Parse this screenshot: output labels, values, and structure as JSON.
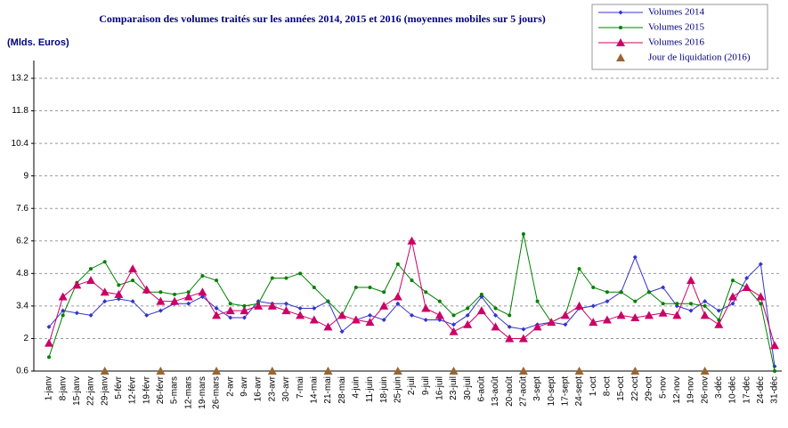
{
  "chart_data": {
    "type": "line",
    "title": "Comparaison des volumes traités sur les années 2014, 2015 et 2016 (moyennes mobiles sur 5 jours)",
    "y_label": "(Mlds. Euros)",
    "categories": [
      "1-janv",
      "8-janv",
      "15-janv",
      "22-janv",
      "29-janv",
      "5-févr",
      "12-févr",
      "19-févr",
      "26-févr",
      "5-mars",
      "12-mars",
      "19-mars",
      "26-mars",
      "2-avr",
      "9-avr",
      "16-avr",
      "23-avr",
      "30-avr",
      "7-mai",
      "14-mai",
      "21-mai",
      "28-mai",
      "4-juin",
      "11-juin",
      "18-juin",
      "25-juin",
      "2-juil",
      "9-juil",
      "16-juil",
      "23-juil",
      "30-juil",
      "6-août",
      "13-août",
      "20-août",
      "27-août",
      "3-sept",
      "10-sept",
      "17-sept",
      "24-sept",
      "1-oct",
      "8-oct",
      "15-oct",
      "22-oct",
      "29-oct",
      "5-nov",
      "12-nov",
      "19-nov",
      "26-nov",
      "3-déc",
      "10-déc",
      "17-déc",
      "24-déc",
      "31-déc"
    ],
    "series": [
      {
        "name": "Volumes 2014",
        "color": "#3333cc",
        "marker": "diamond",
        "values": [
          2.5,
          3.2,
          3.1,
          3.0,
          3.6,
          3.7,
          3.6,
          3.0,
          3.2,
          3.5,
          3.5,
          3.8,
          3.3,
          2.9,
          2.9,
          3.6,
          3.5,
          3.5,
          3.3,
          3.3,
          3.6,
          2.3,
          2.8,
          3.0,
          2.8,
          3.5,
          3.0,
          2.8,
          2.8,
          2.6,
          3.0,
          3.8,
          3.0,
          2.5,
          2.4,
          2.6,
          2.7,
          2.6,
          3.3,
          3.4,
          3.6,
          4.0,
          5.5,
          4.0,
          4.2,
          3.4,
          3.2,
          3.6,
          3.2,
          3.5,
          4.6,
          5.2,
          0.8
        ]
      },
      {
        "name": "Volumes 2015",
        "color": "#008000",
        "marker": "dot",
        "values": [
          1.2,
          3.0,
          4.4,
          5.0,
          5.3,
          4.3,
          4.5,
          4.0,
          4.0,
          3.9,
          4.0,
          4.7,
          4.5,
          3.5,
          3.4,
          3.5,
          4.6,
          4.6,
          4.8,
          4.2,
          3.6,
          3.0,
          4.2,
          4.2,
          4.0,
          5.2,
          4.5,
          4.0,
          3.6,
          3.0,
          3.3,
          3.9,
          3.3,
          3.0,
          6.5,
          3.6,
          2.7,
          3.0,
          5.0,
          4.2,
          4.0,
          4.0,
          3.6,
          4.0,
          3.5,
          3.5,
          3.5,
          3.4,
          2.8,
          4.5,
          4.2,
          3.5,
          0.6
        ]
      },
      {
        "name": "Volumes 2016",
        "color": "#cc0066",
        "marker": "triangle",
        "values": [
          1.8,
          3.8,
          4.3,
          4.5,
          4.0,
          3.9,
          5.0,
          4.1,
          3.6,
          3.6,
          3.8,
          4.0,
          3.0,
          3.2,
          3.2,
          3.4,
          3.4,
          3.2,
          3.0,
          2.8,
          2.5,
          3.0,
          2.8,
          2.7,
          3.4,
          3.8,
          6.2,
          3.3,
          3.0,
          2.3,
          2.6,
          3.2,
          2.5,
          2.0,
          2.0,
          2.5,
          2.7,
          3.0,
          3.4,
          2.7,
          2.8,
          3.0,
          2.9,
          3.0,
          3.1,
          3.0,
          4.5,
          3.0,
          2.6,
          3.8,
          4.2,
          3.8,
          1.7
        ]
      },
      {
        "name": "Jour de liquidation (2016)",
        "color": "#996633",
        "marker": "triangle",
        "line": false,
        "values": [
          null,
          null,
          null,
          null,
          0.6,
          null,
          null,
          null,
          0.6,
          null,
          null,
          null,
          0.6,
          null,
          null,
          null,
          0.6,
          null,
          null,
          null,
          0.6,
          null,
          null,
          null,
          null,
          0.6,
          null,
          null,
          null,
          0.6,
          null,
          null,
          null,
          null,
          0.6,
          null,
          null,
          null,
          0.6,
          null,
          null,
          null,
          0.6,
          null,
          null,
          null,
          null,
          0.6,
          null,
          null,
          null,
          null,
          null
        ]
      }
    ],
    "ylim": [
      0.6,
      13.2
    ],
    "yticks": [
      0.6,
      2,
      3.4,
      4.8,
      6.2,
      7.6,
      9,
      10.4,
      11.8,
      13.2
    ],
    "grid": true,
    "legend": "top-right"
  }
}
